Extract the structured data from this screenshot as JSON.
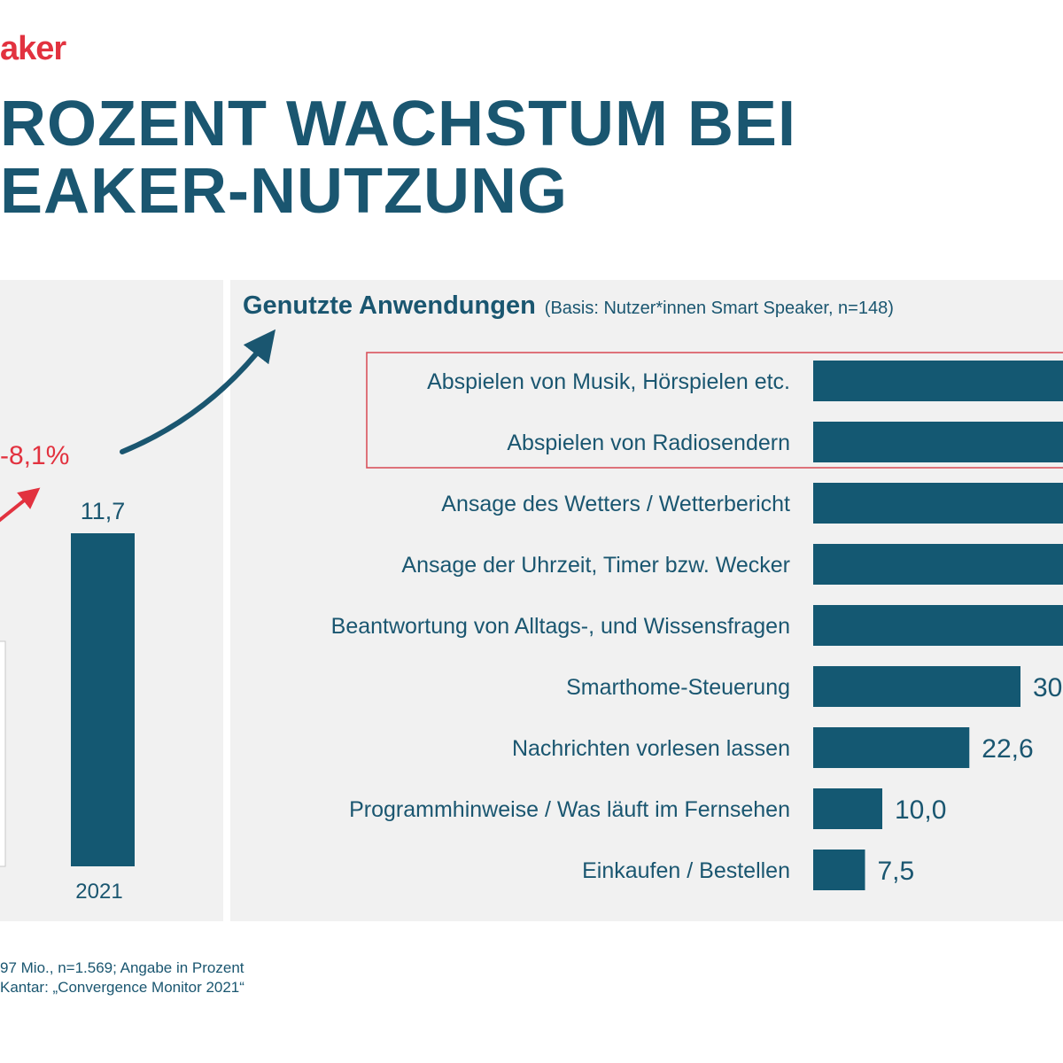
{
  "brand": "aker",
  "headline": {
    "line1": "ROZENT WACHSTUM BEI",
    "line2": "EAKER-NUTZUNG"
  },
  "colors": {
    "brand_red": "#e2323f",
    "navy": "#1a5670",
    "bar": "#145872",
    "panel_bg": "#f1f1f1",
    "highlight_border": "#d9535c"
  },
  "icons": [
    "curved-arrow-icon",
    "growth-arrow-icon"
  ],
  "chart_data": [
    {
      "type": "bar",
      "orientation": "vertical",
      "categories": [
        "2021"
      ],
      "values": [
        11.7
      ],
      "value_labels": [
        "11,7"
      ],
      "growth_label": "-8,1%"
    },
    {
      "type": "bar",
      "orientation": "horizontal",
      "title": "Genutzte Anwendungen",
      "subtitle": "(Basis: Nutzer*innen Smart Speaker, n=148)",
      "categories": [
        "Abspielen von Musik, Hörspielen etc.",
        "Abspielen von Radiosendern",
        "Ansage des Wetters / Wetterbericht",
        "Ansage der Uhrzeit, Timer bzw. Wecker",
        "Beantwortung von Alltags-, und Wissensfragen",
        "Smarthome-Steuerung",
        "Nachrichten vorlesen lassen",
        "Programmhinweise / Was läuft im Fernsehen",
        "Einkaufen / Bestellen"
      ],
      "values": [
        null,
        null,
        null,
        null,
        null,
        30,
        22.6,
        10.0,
        7.5
      ],
      "value_labels": [
        "",
        "",
        "",
        "",
        "",
        "30",
        "22,6",
        "10,0",
        "7,5"
      ],
      "highlighted": [
        0,
        1
      ]
    }
  ],
  "footnote": {
    "line1": "97 Mio., n=1.569; Angabe in Prozent",
    "line2": "Kantar: „Convergence Monitor 2021“"
  }
}
